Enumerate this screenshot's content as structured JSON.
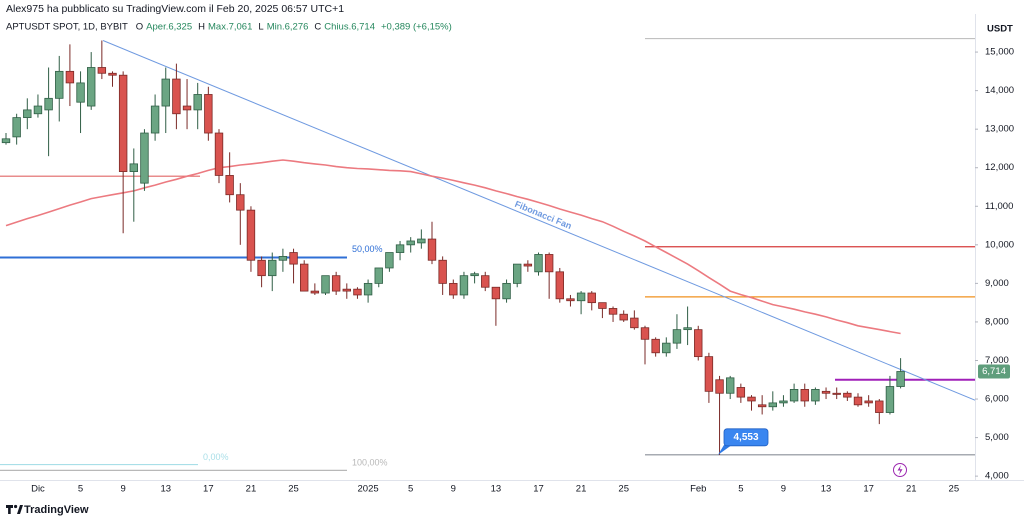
{
  "chart_data": {
    "type": "candlestick",
    "publish_note": "Alex975 ha pubblicato su TradingView.com il Feb 20, 2025 06:57 UTC+1",
    "symbol": "APTUSDT SPOT, 1D, BYBIT",
    "ohlc_text": [
      "O",
      "Aper.6,325",
      "H",
      "Max.7,061",
      "L",
      "Min.6,276",
      "C",
      "Chius.6,714",
      "+0,389 (+6,15%)"
    ],
    "currency": "USDT",
    "brand": "TradingView",
    "categories": [
      null,
      null,
      null,
      "Dic",
      null,
      null,
      null,
      "5",
      null,
      null,
      null,
      "9",
      null,
      null,
      null,
      "13",
      null,
      null,
      null,
      "17",
      null,
      null,
      null,
      "21",
      null,
      null,
      null,
      "25",
      null,
      null,
      null,
      null,
      null,
      null,
      "2025",
      null,
      null,
      null,
      "5",
      null,
      null,
      null,
      "9",
      null,
      null,
      null,
      "13",
      null,
      null,
      null,
      "17",
      null,
      null,
      null,
      "21",
      null,
      null,
      null,
      "25",
      null,
      null,
      null,
      null,
      null,
      null,
      "Feb",
      null,
      null,
      null,
      "5",
      null,
      null,
      null,
      "9",
      null,
      null,
      null,
      "13",
      null,
      null,
      null,
      "17",
      null,
      null,
      null,
      "21",
      null,
      null,
      null,
      "25",
      null,
      null
    ],
    "open": [
      12.65,
      12.8,
      13.3,
      13.4,
      13.5,
      13.8,
      14.5,
      13.7,
      13.6,
      14.6,
      14.45,
      14.4,
      11.9,
      11.6,
      12.9,
      13.6,
      14.3,
      13.6,
      13.5,
      13.9,
      12.9,
      11.8,
      11.3,
      10.9,
      9.6,
      9.2,
      9.6,
      9.8,
      9.5,
      8.8,
      8.75,
      9.2,
      8.85,
      8.85,
      8.7,
      9.0,
      9.4,
      9.8,
      10.0,
      10.05,
      10.15,
      9.6,
      9.0,
      8.7,
      9.2,
      9.2,
      8.9,
      8.6,
      9.0,
      9.5,
      9.3,
      9.75,
      9.3,
      8.6,
      8.55,
      8.75,
      8.5,
      8.35,
      8.2,
      8.1,
      7.85,
      7.55,
      7.2,
      7.45,
      7.8,
      7.8,
      7.1,
      6.5,
      6.15,
      6.3,
      6.05,
      5.85,
      5.8,
      5.9,
      5.95,
      6.25,
      5.95,
      6.2,
      6.15,
      6.15,
      6.05,
      5.95,
      5.95,
      5.65,
      6.325,
      null,
      null,
      null,
      null,
      null,
      null,
      null
    ],
    "high": [
      12.9,
      13.4,
      13.8,
      13.9,
      14.6,
      14.9,
      15.2,
      14.5,
      15.0,
      15.3,
      14.5,
      14.5,
      12.5,
      13.0,
      13.9,
      14.6,
      14.7,
      14.3,
      14.2,
      14.1,
      13.0,
      12.4,
      11.6,
      11.0,
      9.7,
      9.8,
      9.9,
      9.9,
      9.6,
      9.0,
      9.2,
      9.3,
      9.0,
      8.9,
      9.1,
      9.4,
      9.8,
      10.1,
      10.2,
      10.4,
      10.6,
      9.7,
      9.1,
      9.3,
      9.3,
      9.3,
      8.9,
      9.1,
      9.5,
      9.6,
      9.8,
      9.8,
      9.4,
      8.7,
      8.8,
      8.8,
      8.5,
      8.4,
      8.3,
      8.3,
      7.9,
      7.6,
      7.6,
      8.2,
      8.4,
      7.9,
      7.2,
      6.6,
      6.6,
      6.4,
      6.1,
      6.1,
      6.2,
      6.1,
      6.4,
      6.4,
      6.3,
      6.3,
      6.3,
      6.2,
      6.15,
      6.1,
      6.0,
      6.6,
      7.061,
      null,
      null,
      null,
      null,
      null,
      null,
      null
    ],
    "low": [
      12.6,
      12.6,
      13.0,
      13.3,
      12.3,
      13.2,
      13.6,
      12.9,
      13.5,
      14.3,
      14.1,
      10.3,
      10.6,
      11.4,
      12.7,
      12.9,
      13.0,
      13.0,
      13.0,
      12.7,
      11.6,
      11.1,
      10.0,
      9.3,
      8.9,
      8.8,
      9.3,
      9.0,
      8.8,
      8.7,
      8.7,
      8.7,
      8.6,
      8.6,
      8.5,
      8.9,
      9.3,
      9.6,
      9.8,
      9.9,
      9.5,
      8.7,
      8.6,
      8.6,
      9.0,
      8.8,
      7.9,
      8.5,
      8.9,
      9.3,
      9.2,
      8.6,
      8.5,
      8.4,
      8.2,
      8.3,
      8.1,
      8.0,
      8.0,
      7.8,
      6.9,
      7.1,
      7.1,
      7.3,
      7.4,
      7.0,
      5.9,
      4.55,
      6.0,
      5.9,
      5.7,
      5.6,
      5.7,
      5.8,
      5.9,
      5.8,
      5.85,
      6.0,
      6.0,
      5.95,
      5.8,
      5.8,
      5.35,
      5.6,
      6.276,
      null,
      null,
      null,
      null,
      null,
      null,
      null
    ],
    "close": [
      12.75,
      13.3,
      13.5,
      13.6,
      13.8,
      14.5,
      14.2,
      14.2,
      14.6,
      14.45,
      14.4,
      11.9,
      12.1,
      12.9,
      13.6,
      14.3,
      13.4,
      13.5,
      13.9,
      12.9,
      11.8,
      11.3,
      10.9,
      9.6,
      9.2,
      9.6,
      9.7,
      9.5,
      8.8,
      8.75,
      9.2,
      8.8,
      8.8,
      8.7,
      9.0,
      9.4,
      9.8,
      10.0,
      10.1,
      10.15,
      9.6,
      9.0,
      8.7,
      9.2,
      9.25,
      8.9,
      8.6,
      9.0,
      9.5,
      9.45,
      9.75,
      9.3,
      8.6,
      8.55,
      8.75,
      8.5,
      8.35,
      8.2,
      8.05,
      7.85,
      7.55,
      7.2,
      7.45,
      7.8,
      7.85,
      7.1,
      6.2,
      6.15,
      6.55,
      6.05,
      5.95,
      5.8,
      5.9,
      5.95,
      6.25,
      5.95,
      6.25,
      6.15,
      6.12,
      6.05,
      5.85,
      5.9,
      5.65,
      6.325,
      6.714,
      null,
      null,
      null,
      null,
      null,
      null,
      null
    ],
    "up_color": "#6ba583",
    "down_color": "#d9534f",
    "ma": {
      "color": "#ec7a80",
      "values": [
        10.5,
        10.59,
        10.68,
        10.76,
        10.85,
        10.94,
        11.03,
        11.11,
        11.2,
        11.25,
        11.3,
        11.35,
        11.4,
        11.48,
        11.55,
        11.63,
        11.7,
        11.78,
        11.85,
        11.93,
        12.0,
        12.03,
        12.07,
        12.1,
        12.13,
        12.17,
        12.2,
        12.17,
        12.13,
        12.1,
        12.07,
        12.03,
        12.0,
        11.98,
        11.97,
        11.95,
        11.93,
        11.92,
        11.9,
        11.84,
        11.78,
        11.73,
        11.67,
        11.61,
        11.55,
        11.48,
        11.4,
        11.33,
        11.25,
        11.18,
        11.1,
        11.02,
        10.93,
        10.85,
        10.77,
        10.68,
        10.6,
        10.48,
        10.35,
        10.23,
        10.1,
        9.95,
        9.8,
        9.65,
        9.5,
        9.33,
        9.15,
        8.98,
        8.8,
        8.71,
        8.63,
        8.54,
        8.45,
        8.39,
        8.33,
        8.26,
        8.2,
        8.13,
        8.05,
        7.98,
        7.9,
        7.85,
        7.8,
        7.75,
        7.7,
        null,
        null,
        null,
        null,
        null,
        null,
        null
      ]
    },
    "levels": [
      {
        "value": 11.78,
        "color": "#e06666"
      },
      {
        "value": 9.67,
        "color": "#2f6fd6",
        "label": "50,00%"
      },
      {
        "value": 4.3,
        "color": "#a9dfe8",
        "label": "0,00%"
      },
      {
        "value": 4.15,
        "color": "#b8b8b8",
        "label": "100,00%"
      },
      {
        "value": 15.35,
        "color": "#b8b8b8"
      },
      {
        "value": 9.95,
        "color": "#d63b3b"
      },
      {
        "value": 8.65,
        "color": "#f0901e"
      },
      {
        "value": 6.5,
        "color": "#a020b8"
      },
      {
        "value": 4.553,
        "color": "#8a8f99",
        "label": "4,553"
      }
    ],
    "fan": {
      "label": "Fibonacci Fan",
      "start": 15.3,
      "end": 5.97,
      "color": "#6f9ae0"
    },
    "last_price": {
      "value": 6.714,
      "label": "6,714",
      "color": "#5f9e7c"
    },
    "ylim": [
      3.9,
      15.78
    ],
    "yticks": [
      {
        "value": 4,
        "label": "4,000"
      },
      {
        "value": 5,
        "label": "5,000"
      },
      {
        "value": 6,
        "label": "6,000"
      },
      {
        "value": 7,
        "label": "7,000"
      },
      {
        "value": 8,
        "label": "8,000"
      },
      {
        "value": 9,
        "label": "9,000"
      },
      {
        "value": 10,
        "label": "10,000"
      },
      {
        "value": 11,
        "label": "11,000"
      },
      {
        "value": 12,
        "label": "12,000"
      },
      {
        "value": 13,
        "label": "13,000"
      },
      {
        "value": 14,
        "label": "14,000"
      },
      {
        "value": 15,
        "label": "15,000"
      }
    ],
    "grid": false
  }
}
